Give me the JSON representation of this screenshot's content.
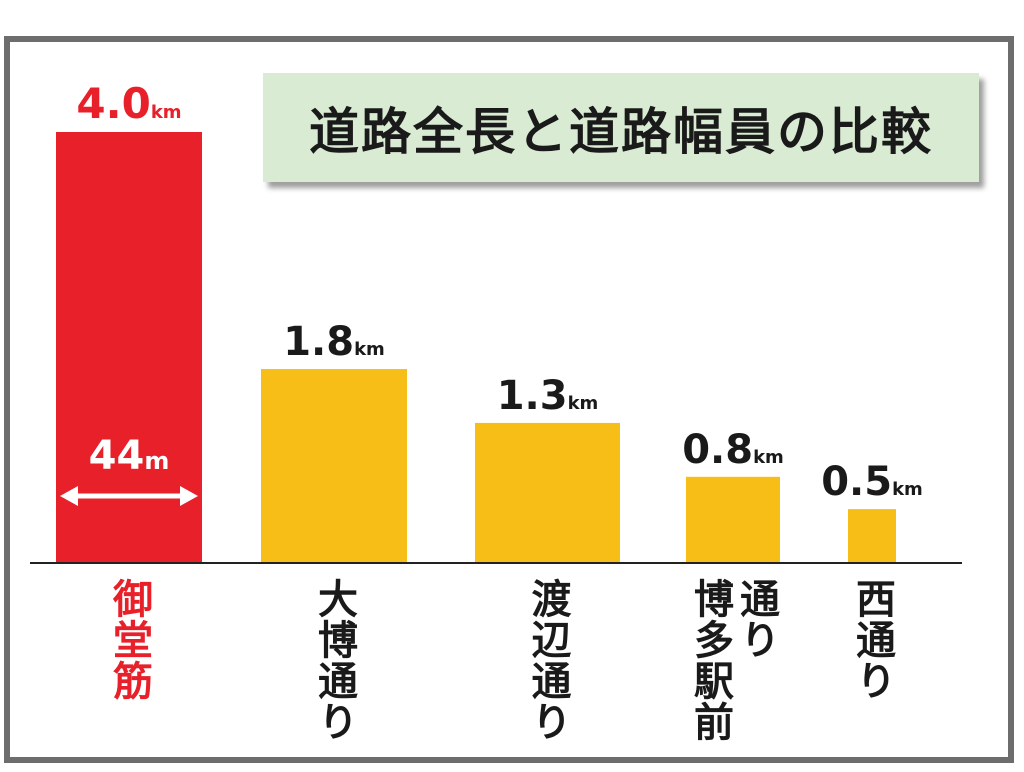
{
  "title": "道路全長と道路幅員の比較",
  "colors": {
    "highlight": "#e8202a",
    "bar": "#f7be18",
    "text": "#1a1a1a",
    "axis": "#222222"
  },
  "width_annotation": {
    "value": "44",
    "unit": "m"
  },
  "chart_data": {
    "type": "bar",
    "title": "道路全長と道路幅員の比較",
    "categories": [
      "御堂筋",
      "大博通り",
      "渡辺通り",
      "博多駅前通り",
      "西通り"
    ],
    "category_display": [
      "御堂筋",
      "大博通り",
      "渡辺通り",
      "通り|博多駅前",
      "西通り"
    ],
    "values": [
      4.0,
      1.8,
      1.3,
      0.8,
      0.5
    ],
    "value_labels": [
      "4.0",
      "1.8",
      "1.3",
      "0.8",
      "0.5"
    ],
    "unit": "km",
    "highlight_index": 0,
    "xlabel": "",
    "ylabel": "",
    "ylim": [
      0,
      4.0
    ],
    "grid": false,
    "legend": "none"
  }
}
